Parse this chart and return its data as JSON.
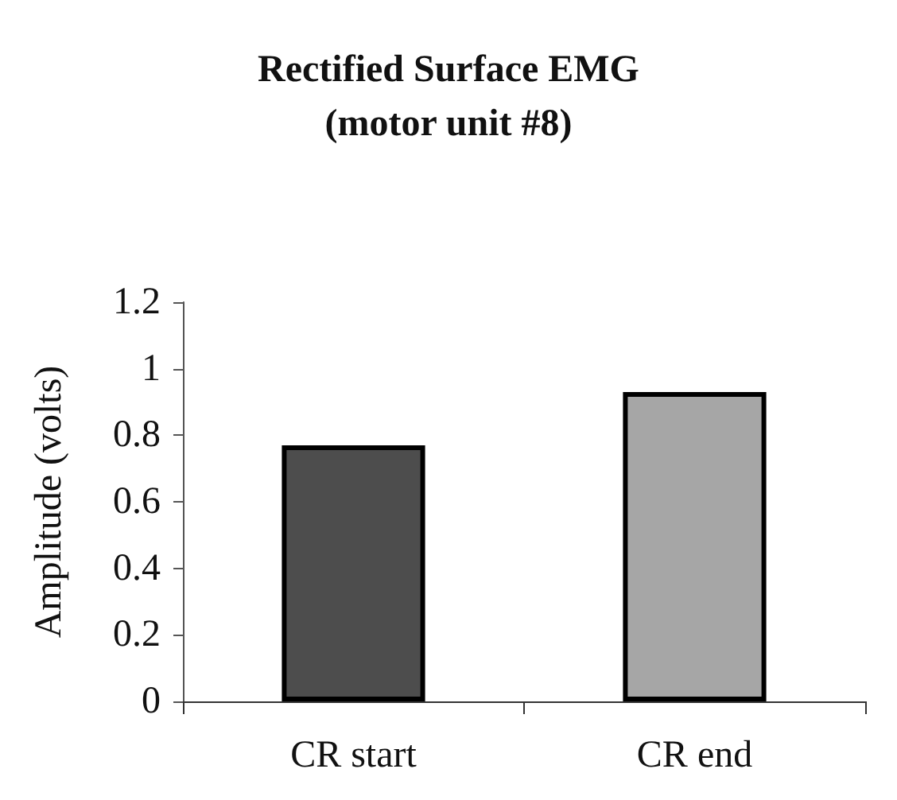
{
  "chart_data": {
    "type": "bar",
    "title": "Rectified Surface EMG\n(motor unit #8)",
    "ylabel": "Amplitude (volts)",
    "categories": [
      "CR start",
      "CR end"
    ],
    "values": [
      0.77,
      0.93
    ],
    "colors": [
      "#4d4d4d",
      "#a6a6a6"
    ],
    "ylim": [
      0,
      1.2
    ],
    "yticks": [
      0,
      0.2,
      0.4,
      0.6,
      0.8,
      1,
      1.2
    ],
    "grid": false
  }
}
